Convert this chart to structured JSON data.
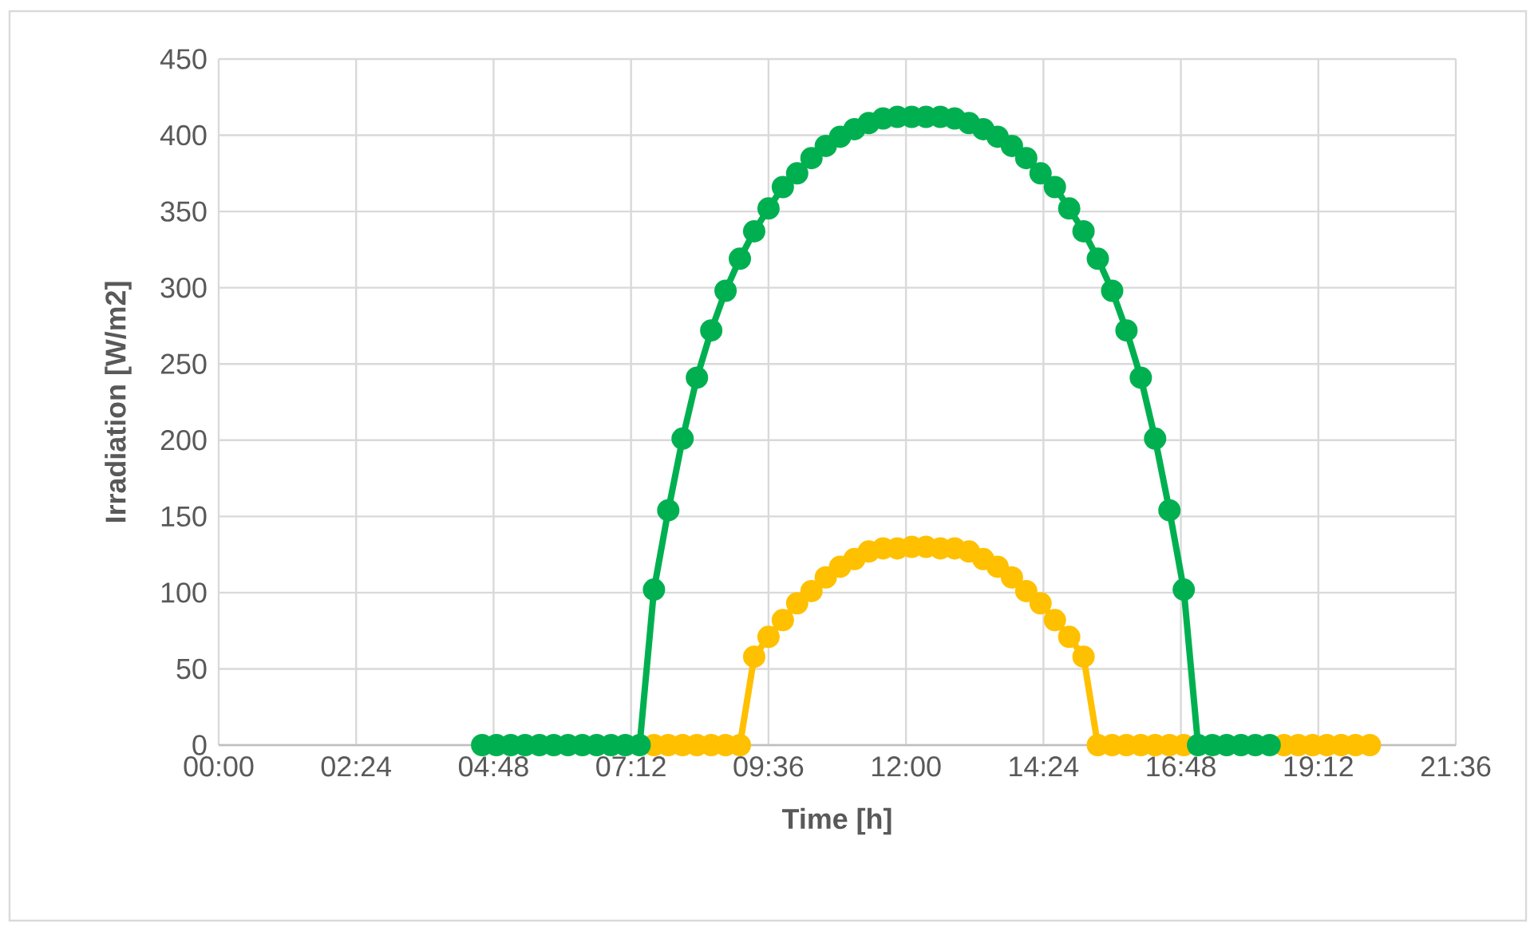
{
  "chart_data": {
    "type": "line",
    "xlabel": "Time [h]",
    "ylabel": "Irradiation [W/m2]",
    "x": [
      4.6,
      4.85,
      5.1,
      5.35,
      5.6,
      5.85,
      6.1,
      6.35,
      6.6,
      6.85,
      7.1,
      7.35,
      7.6,
      7.85,
      8.1,
      8.35,
      8.6,
      8.85,
      9.1,
      9.35,
      9.6,
      9.85,
      10.1,
      10.35,
      10.6,
      10.85,
      11.1,
      11.35,
      11.6,
      11.85,
      12.1,
      12.35,
      12.6,
      12.85,
      13.1,
      13.35,
      13.6,
      13.85,
      14.1,
      14.35,
      14.6,
      14.85,
      15.1,
      15.35,
      15.6,
      15.85,
      16.1,
      16.35,
      16.6,
      16.85,
      17.1,
      17.35,
      17.6,
      17.85,
      18.1,
      18.35,
      18.6,
      18.85,
      19.1,
      19.35,
      19.6,
      19.85,
      20.1
    ],
    "series": [
      {
        "color": "#00b050",
        "values": [
          0,
          0,
          0,
          0,
          0,
          0,
          0,
          0,
          0,
          0,
          0,
          0,
          102,
          154,
          201,
          241,
          272,
          298,
          319,
          337,
          352,
          366,
          375,
          385,
          393,
          399,
          404,
          408,
          411,
          412,
          412,
          412,
          412,
          411,
          408,
          404,
          399,
          393,
          385,
          375,
          366,
          352,
          337,
          319,
          298,
          272,
          241,
          201,
          154,
          102,
          0,
          0,
          0,
          0,
          0,
          0,
          null,
          null,
          null,
          null,
          null,
          null,
          null
        ]
      },
      {
        "color": "#ffc000",
        "values": [
          null,
          null,
          null,
          null,
          null,
          null,
          null,
          null,
          null,
          null,
          null,
          null,
          0,
          0,
          0,
          0,
          0,
          0,
          0,
          58,
          71,
          82,
          93,
          101,
          110,
          117,
          122,
          127,
          129,
          129,
          130,
          130,
          129,
          129,
          127,
          122,
          117,
          110,
          101,
          93,
          82,
          71,
          58,
          0,
          0,
          0,
          0,
          0,
          0,
          0,
          null,
          null,
          null,
          null,
          null,
          null,
          0,
          0,
          0,
          0,
          0,
          0,
          0
        ]
      }
    ],
    "xlim": [
      0,
      21.6
    ],
    "xticks": [
      {
        "value": 0,
        "label": "00:00"
      },
      {
        "value": 2.4,
        "label": "02:24"
      },
      {
        "value": 4.8,
        "label": "04:48"
      },
      {
        "value": 7.2,
        "label": "07:12"
      },
      {
        "value": 9.6,
        "label": "09:36"
      },
      {
        "value": 12,
        "label": "12:00"
      },
      {
        "value": 14.4,
        "label": "14:24"
      },
      {
        "value": 16.8,
        "label": "16:48"
      },
      {
        "value": 19.2,
        "label": "19:12"
      },
      {
        "value": 21.6,
        "label": "21:36"
      }
    ],
    "ylim": [
      0,
      450
    ],
    "yticks": [
      0,
      50,
      100,
      150,
      200,
      250,
      300,
      350,
      400,
      450
    ],
    "grid": true,
    "marker": "circle",
    "line_style": "solid"
  }
}
